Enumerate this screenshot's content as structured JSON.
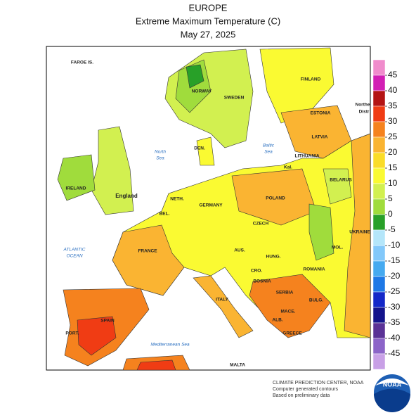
{
  "header": {
    "region": "EUROPE",
    "title": "Extreme Maximum Temperature (C)",
    "date": "May 27, 2025"
  },
  "legend": {
    "ticks": [
      45,
      40,
      35,
      30,
      25,
      20,
      15,
      10,
      5,
      0,
      -5,
      -10,
      -15,
      -20,
      -25,
      -30,
      -35,
      -40,
      -45
    ],
    "colors": [
      "#f08ccc",
      "#d21fb4",
      "#b41414",
      "#f03c14",
      "#f5821e",
      "#fab432",
      "#fadc28",
      "#fafa32",
      "#d2f050",
      "#a0dc3c",
      "#28a028",
      "#b4e6fa",
      "#82c8fa",
      "#46aaf0",
      "#1e78e6",
      "#1428c8",
      "#14148c",
      "#5a3296",
      "#8c64c8",
      "#c8a0e6",
      "#e6d2f0",
      "#f0f0fa",
      "#dcdcdc",
      "#a0a0a0",
      "#787878"
    ]
  },
  "labels": {
    "places": [
      "FAROE IS.",
      "NORWAY",
      "SWEDEN",
      "FINLAND",
      "ESTONIA",
      "Northe",
      "Distr",
      "LATVIA",
      "LITHUANIA",
      "DEN.",
      "Kal.",
      "BELARUS",
      "IRELAND",
      "England",
      "NETH.",
      "GERMANY",
      "POLAND",
      "BEL.",
      "CZECH",
      "UKRAINE",
      "FRANCE",
      "AUS.",
      "HUNG.",
      "MOL.",
      "ROMANIA",
      "CRO.",
      "BOSNIA",
      "SERBIA",
      "ITALY",
      "BULG.",
      "MACE.",
      "ALB.",
      "GREECE",
      "PORT.",
      "SPAIN",
      "MALTA"
    ],
    "seas": [
      "North",
      "Sea",
      "Baltic",
      "Sea",
      "ATLANTIC",
      "OCEAN",
      "Mediterranean Sea"
    ]
  },
  "footer": [
    "CLIMATE PREDICTION CENTER, NOAA",
    "Computer generated contours",
    "Based on preliminary data"
  ],
  "logo": "NOAA"
}
